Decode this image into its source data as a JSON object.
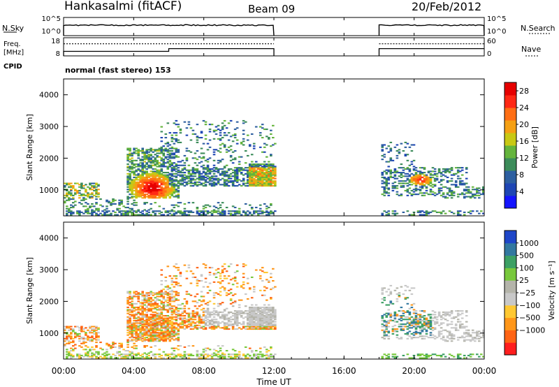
{
  "header": {
    "station": "Hankasalmi (fitACF)",
    "beam": "Beam 09",
    "date": "20/Feb/2012"
  },
  "noise_panel": {
    "left_label": "N.Sky",
    "left_ticks": [
      "10^5",
      "10^0"
    ],
    "right_label": "N.Search",
    "right_ticks": [
      "10^5",
      "10^0"
    ]
  },
  "freq_panel": {
    "left_label_1": "Freq.",
    "left_label_2": "[MHz]",
    "left_ticks": [
      "18",
      "8"
    ],
    "right_label": "Nave",
    "right_ticks": [
      "60",
      "0"
    ],
    "cpid_label": "CPID",
    "mode_text": "normal (fast stereo) 153"
  },
  "colors": {
    "power_scale": [
      "#1414ff",
      "#1e46b4",
      "#2d5fa0",
      "#3c8c5a",
      "#64b43c",
      "#c8c814",
      "#f5a014",
      "#ff6e14",
      "#ff2814",
      "#e60000"
    ],
    "velocity_scale": [
      "#ff1e1e",
      "#ff6414",
      "#ff9619",
      "#ffc832",
      "#c8c8c8",
      "#b4b4aa",
      "#78c83c",
      "#3ca064",
      "#3278a0",
      "#1e46c8"
    ]
  },
  "chart_data": [
    {
      "type": "line",
      "title": "N.Sky / N.Search",
      "xlabel": "",
      "ylabel": "N.Sky",
      "y_scale": "log",
      "ylim": [
        "10^0",
        "10^5"
      ],
      "x": [
        "00:00",
        "12:00",
        "18:00",
        "00:00"
      ],
      "series": [
        {
          "name": "N.Sky",
          "segments": [
            {
              "x": [
                "00:00",
                "12:00"
              ],
              "level": "~10^4"
            },
            {
              "x": [
                "18:00",
                "00:00"
              ],
              "level": "~10^4"
            }
          ]
        },
        {
          "name": "N.Search",
          "segments": [
            {
              "x": [
                "00:00",
                "12:00"
              ],
              "level": "~10^4"
            },
            {
              "x": [
                "18:00",
                "00:00"
              ],
              "level": "~10^4"
            }
          ]
        }
      ]
    },
    {
      "type": "line",
      "title": "Freq. / Nave",
      "ylabel": "Freq. [MHz]",
      "ylim": [
        8,
        18
      ],
      "right_ylabel": "Nave",
      "right_ylim": [
        0,
        60
      ],
      "series": [
        {
          "name": "Freq.",
          "x": [
            "00:00",
            "06:00",
            "06:00",
            "12:00",
            "18:00",
            "00:00"
          ],
          "values": [
            10.5,
            10.5,
            12,
            12,
            12,
            12
          ]
        },
        {
          "name": "Nave",
          "x": [
            "00:00",
            "12:00",
            "18:00",
            "00:00"
          ],
          "values": [
            40,
            40,
            40,
            40
          ]
        }
      ]
    },
    {
      "type": "heatmap",
      "ylabel": "Slant Range [km]",
      "ylim": [
        180,
        4500
      ],
      "y_ticks": [
        "1000",
        "2000",
        "3000",
        "4000"
      ],
      "x_ticks": [
        "00:00",
        "04:00",
        "08:00",
        "12:00",
        "16:00",
        "20:00",
        "00:00"
      ],
      "colorbar": {
        "label": "Power [dB]",
        "ticks": [
          "4",
          "8",
          "12",
          "16",
          "20",
          "24",
          "28"
        ],
        "range": [
          0,
          30
        ]
      },
      "features": [
        {
          "x": [
            "00:00",
            "12:00"
          ],
          "range_km": [
            200,
            3200
          ],
          "peak_dB": 30,
          "peak_time": "05:00",
          "peak_range_km": 1000
        },
        {
          "x": [
            "18:00",
            "00:00"
          ],
          "range_km": [
            200,
            2500
          ],
          "peak_dB": 28,
          "peak_time": "20:30",
          "peak_range_km": 1300
        }
      ]
    },
    {
      "type": "heatmap",
      "ylabel": "Slant Range [km]",
      "xlabel": "Time UT",
      "ylim": [
        180,
        4500
      ],
      "y_ticks": [
        "1000",
        "2000",
        "3000",
        "4000"
      ],
      "x_ticks": [
        "00:00",
        "04:00",
        "08:00",
        "12:00",
        "16:00",
        "20:00",
        "00:00"
      ],
      "colorbar": {
        "label": "Velocity [m s⁻¹]",
        "ticks": [
          "1000",
          "500",
          "100",
          "25",
          "−25",
          "−100",
          "−500",
          "−1000"
        ]
      },
      "features": [
        {
          "x": [
            "00:00",
            "12:00"
          ],
          "range_km": [
            200,
            3200
          ],
          "dominant_velocity": "−100 to −500"
        },
        {
          "x": [
            "18:00",
            "00:00"
          ],
          "range_km": [
            200,
            2500
          ],
          "dominant_velocity": "−25 to 500"
        }
      ]
    }
  ]
}
